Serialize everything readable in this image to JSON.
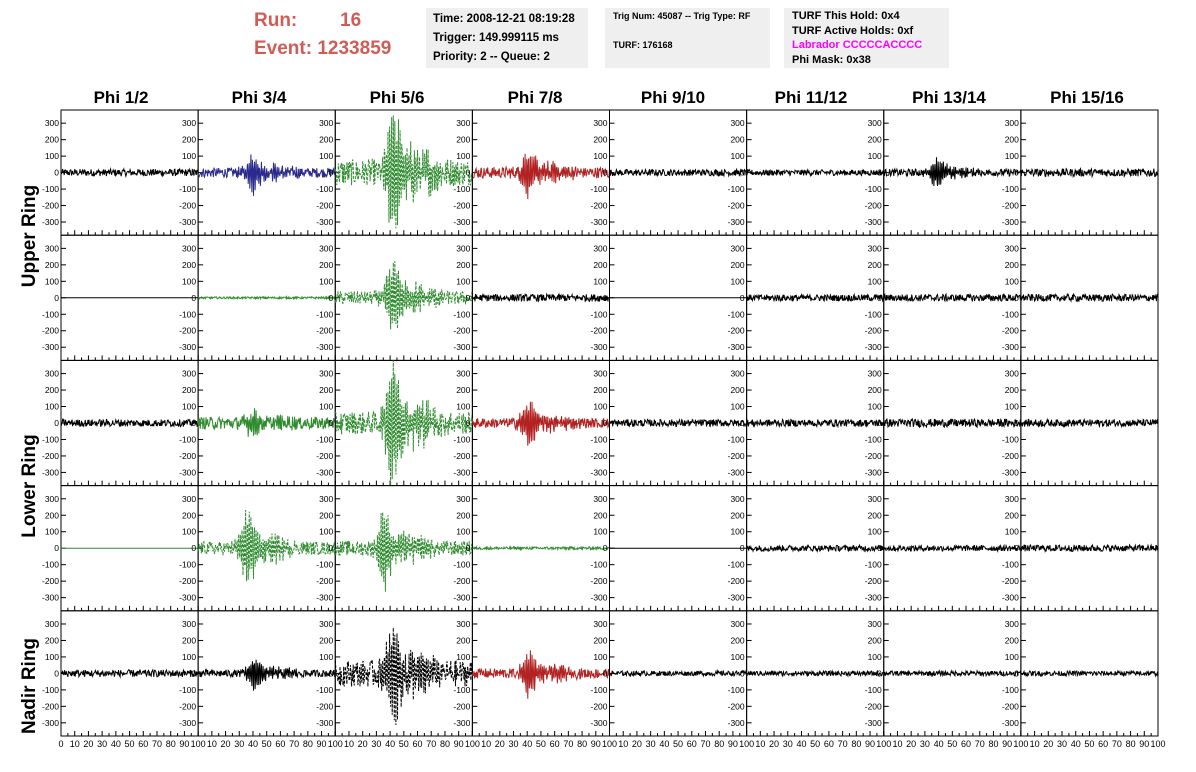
{
  "header": {
    "run_label": "Run:",
    "run_value": "16",
    "event_label": "Event:",
    "event_value": "1233859"
  },
  "info": {
    "time": "Time: 2008-12-21 08:19:28",
    "trigger": "Trigger: 149.999115 ms",
    "priority": "Priority: 2 -- Queue: 2",
    "trig_num": "Trig Num: 45087 -- Trig Type: RF",
    "turf": "TURF: 176168",
    "turf_hold": "TURF This Hold: 0x4",
    "turf_active": "TURF Active Holds: 0xf",
    "labrador": "Labrador CCCCCACCCC",
    "phi_mask": "Phi Mask: 0x38"
  },
  "colors": {
    "header_text": "#d05c55",
    "labrador_text": "#ff00ff",
    "info_box_bg": "#efefef",
    "trace_black": "#000000",
    "trace_blue": "#2a2a8c",
    "trace_green": "#2e8b2e",
    "trace_red": "#b22222"
  },
  "chart_data": {
    "type": "line",
    "columns": [
      "Phi 1/2",
      "Phi 3/4",
      "Phi 5/6",
      "Phi 7/8",
      "Phi 9/10",
      "Phi 11/12",
      "Phi 13/14",
      "Phi 15/16"
    ],
    "row_labels": [
      "Upper Ring",
      "Lower Ring",
      "Nadir Ring"
    ],
    "rows": 5,
    "xlim": [
      0,
      100
    ],
    "ylim": [
      -380,
      380
    ],
    "yticks": [
      300,
      200,
      100,
      0,
      -100,
      -200,
      -300
    ],
    "xticks": [
      0,
      10,
      20,
      30,
      40,
      50,
      60,
      70,
      80,
      90,
      100
    ],
    "grid": false,
    "panels": [
      [
        {
          "color": "black",
          "style": "solid",
          "amp": 22,
          "peak": 0,
          "peak_pos": 50
        },
        {
          "color": "blue",
          "style": "solid",
          "amp": 30,
          "peak": 100,
          "peak_pos": 40
        },
        {
          "color": "green",
          "style": "dashed",
          "amp": 80,
          "peak": 330,
          "peak_pos": 42
        },
        {
          "color": "red",
          "style": "solid",
          "amp": 35,
          "peak": 115,
          "peak_pos": 41
        },
        {
          "color": "black",
          "style": "solid",
          "amp": 20,
          "peak": 0,
          "peak_pos": 50
        },
        {
          "color": "black",
          "style": "solid",
          "amp": 18,
          "peak": 0,
          "peak_pos": 50
        },
        {
          "color": "black",
          "style": "solid",
          "amp": 22,
          "peak": 80,
          "peak_pos": 39
        },
        {
          "color": "black",
          "style": "solid",
          "amp": 24,
          "peak": 0,
          "peak_pos": 50
        }
      ],
      [
        {
          "color": "black",
          "style": "flat",
          "amp": 0,
          "peak": 0,
          "peak_pos": 50
        },
        {
          "color": "green",
          "style": "solid",
          "amp": 6,
          "peak": 0,
          "peak_pos": 50
        },
        {
          "color": "green",
          "style": "dashed",
          "amp": 40,
          "peak": 190,
          "peak_pos": 42
        },
        {
          "color": "black",
          "style": "solid",
          "amp": 22,
          "peak": 0,
          "peak_pos": 50
        },
        {
          "color": "black",
          "style": "flat",
          "amp": 0,
          "peak": 0,
          "peak_pos": 50
        },
        {
          "color": "black",
          "style": "solid",
          "amp": 20,
          "peak": 0,
          "peak_pos": 50
        },
        {
          "color": "black",
          "style": "solid",
          "amp": 22,
          "peak": 0,
          "peak_pos": 50
        },
        {
          "color": "black",
          "style": "solid",
          "amp": 22,
          "peak": 0,
          "peak_pos": 50
        }
      ],
      [
        {
          "color": "black",
          "style": "solid",
          "amp": 22,
          "peak": 0,
          "peak_pos": 50
        },
        {
          "color": "green",
          "style": "solid",
          "amp": 38,
          "peak": 60,
          "peak_pos": 40
        },
        {
          "color": "green",
          "style": "dashed",
          "amp": 70,
          "peak": 330,
          "peak_pos": 42
        },
        {
          "color": "red",
          "style": "solid",
          "amp": 30,
          "peak": 110,
          "peak_pos": 41
        },
        {
          "color": "black",
          "style": "solid",
          "amp": 22,
          "peak": 0,
          "peak_pos": 50
        },
        {
          "color": "black",
          "style": "solid",
          "amp": 22,
          "peak": 0,
          "peak_pos": 50
        },
        {
          "color": "black",
          "style": "solid",
          "amp": 25,
          "peak": 0,
          "peak_pos": 50
        },
        {
          "color": "black",
          "style": "solid",
          "amp": 22,
          "peak": 0,
          "peak_pos": 50
        }
      ],
      [
        {
          "color": "green",
          "style": "flat",
          "amp": 0,
          "peak": 0,
          "peak_pos": 50
        },
        {
          "color": "green",
          "style": "dashed",
          "amp": 40,
          "peak": 200,
          "peak_pos": 36
        },
        {
          "color": "green",
          "style": "dashed",
          "amp": 45,
          "peak": 200,
          "peak_pos": 36
        },
        {
          "color": "green",
          "style": "solid",
          "amp": 8,
          "peak": 0,
          "peak_pos": 50
        },
        {
          "color": "black",
          "style": "flat",
          "amp": 0,
          "peak": 0,
          "peak_pos": 50
        },
        {
          "color": "black",
          "style": "solid",
          "amp": 18,
          "peak": 0,
          "peak_pos": 50
        },
        {
          "color": "black",
          "style": "solid",
          "amp": 18,
          "peak": 0,
          "peak_pos": 50
        },
        {
          "color": "black",
          "style": "solid",
          "amp": 20,
          "peak": 0,
          "peak_pos": 50
        }
      ],
      [
        {
          "color": "black",
          "style": "solid",
          "amp": 22,
          "peak": 0,
          "peak_pos": 50
        },
        {
          "color": "black",
          "style": "solid",
          "amp": 22,
          "peak": 80,
          "peak_pos": 41
        },
        {
          "color": "black",
          "style": "dashed",
          "amp": 80,
          "peak": 250,
          "peak_pos": 42
        },
        {
          "color": "red",
          "style": "solid",
          "amp": 30,
          "peak": 110,
          "peak_pos": 41
        },
        {
          "color": "black",
          "style": "solid",
          "amp": 15,
          "peak": 0,
          "peak_pos": 50
        },
        {
          "color": "black",
          "style": "solid",
          "amp": 15,
          "peak": 0,
          "peak_pos": 50
        },
        {
          "color": "black",
          "style": "solid",
          "amp": 15,
          "peak": 0,
          "peak_pos": 50
        },
        {
          "color": "black",
          "style": "solid",
          "amp": 15,
          "peak": 0,
          "peak_pos": 50
        }
      ]
    ]
  }
}
